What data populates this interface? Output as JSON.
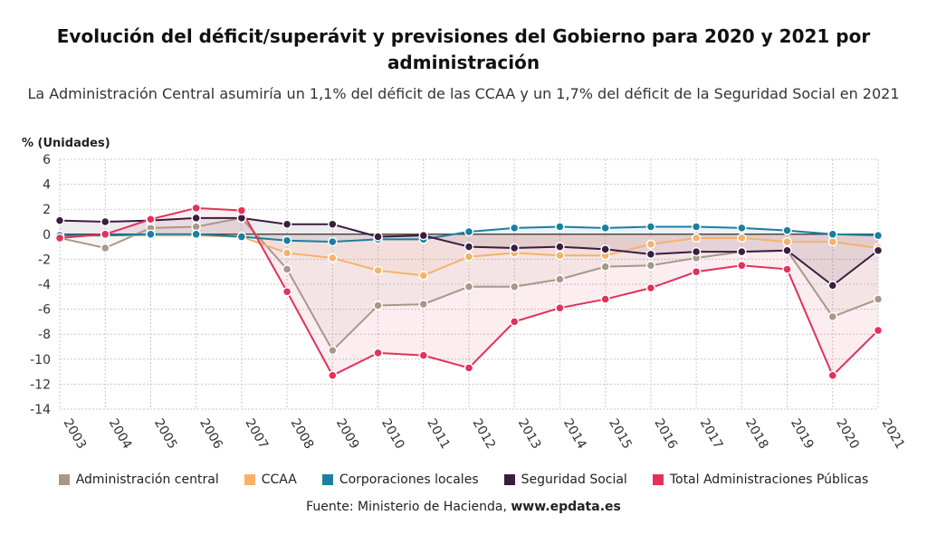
{
  "header": {
    "title": "Evolución del déficit/superávit y previsiones del Gobierno para 2020 y 2021 por administración",
    "subtitle": "La Administración Central asumiría un 1,1% del déficit de las CCAA y un 1,7% del déficit de la Seguridad Social en 2021"
  },
  "footer": {
    "source_prefix": "Fuente: Ministerio de Hacienda, ",
    "source_site": "www.epdata.es"
  },
  "chart_data": {
    "type": "line",
    "ylabel": "% (Unidades)",
    "ylim": [
      -14,
      6
    ],
    "yticks": [
      6,
      4,
      2,
      0,
      -2,
      -4,
      -6,
      -8,
      -10,
      -12,
      -14
    ],
    "categories": [
      "2003",
      "2004",
      "2005",
      "2006",
      "2007",
      "2008",
      "2009",
      "2010",
      "2011",
      "2012",
      "2013",
      "2014",
      "2015",
      "2016",
      "2017",
      "2018",
      "2019",
      "2020",
      "2021"
    ],
    "grid": true,
    "legend_position": "bottom",
    "series": [
      {
        "name": "Administración central",
        "color": "#a89888",
        "values": [
          -0.3,
          -1.1,
          0.5,
          0.6,
          1.3,
          -2.8,
          -9.3,
          -5.7,
          -5.6,
          -4.2,
          -4.2,
          -3.6,
          -2.6,
          -2.5,
          -1.9,
          -1.4,
          -1.3,
          -6.6,
          -5.2
        ]
      },
      {
        "name": "CCAA",
        "color": "#f6b26b",
        "values": [
          -0.1,
          -0.1,
          -0.1,
          -0.1,
          -0.2,
          -1.5,
          -1.9,
          -2.9,
          -3.3,
          -1.8,
          -1.5,
          -1.7,
          -1.7,
          -0.8,
          -0.3,
          -0.3,
          -0.6,
          -0.6,
          -1.1
        ]
      },
      {
        "name": "Corporaciones locales",
        "color": "#1a7fa0",
        "values": [
          -0.1,
          -0.1,
          0.0,
          0.0,
          -0.2,
          -0.5,
          -0.6,
          -0.4,
          -0.4,
          0.2,
          0.5,
          0.6,
          0.5,
          0.6,
          0.6,
          0.5,
          0.3,
          0.0,
          -0.1
        ]
      },
      {
        "name": "Seguridad Social",
        "color": "#3a1d3f",
        "values": [
          1.1,
          1.0,
          1.1,
          1.3,
          1.3,
          0.8,
          0.8,
          -0.2,
          -0.1,
          -1.0,
          -1.1,
          -1.0,
          -1.2,
          -1.6,
          -1.4,
          -1.4,
          -1.3,
          -4.1,
          -1.3
        ]
      },
      {
        "name": "Total Administraciones Públicas",
        "color": "#e0325a",
        "values": [
          -0.3,
          0.0,
          1.2,
          2.1,
          1.9,
          -4.6,
          -11.3,
          -9.5,
          -9.7,
          -10.7,
          -7.0,
          -5.9,
          -5.2,
          -4.3,
          -3.0,
          -2.5,
          -2.8,
          -11.3,
          -7.7
        ]
      }
    ]
  }
}
